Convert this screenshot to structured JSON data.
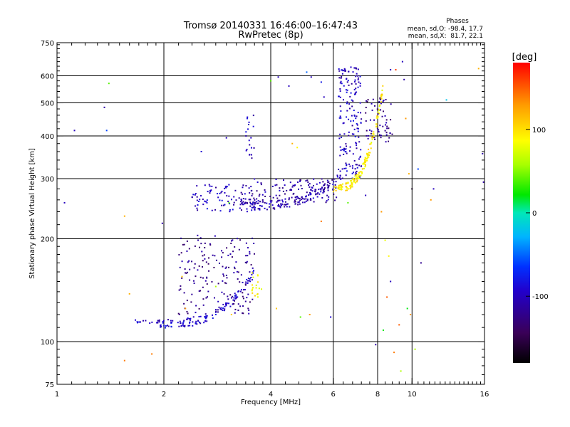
{
  "chart_data": {
    "type": "scatter",
    "title": "Tromsø 20140331 16:46:00–16:47:43",
    "subtitle": "RwPretec (8p)",
    "xlabel": "Frequency [MHz]",
    "ylabel": "Stationary phase Virtual Height [km]",
    "x_scale": "log",
    "y_scale": "log",
    "xlim": [
      1,
      16
    ],
    "ylim": [
      75,
      750
    ],
    "grid": true,
    "x_ticks": [
      1,
      2,
      4,
      6,
      8,
      10,
      16
    ],
    "y_ticks": [
      75,
      100,
      200,
      300,
      400,
      500,
      600,
      750
    ],
    "stats": {
      "heading": "Phases",
      "line_o": "mean, sd,O: -98.4, 17.7",
      "line_x": "mean, sd,X:  81.7, 22.1"
    },
    "colorbar": {
      "label": "[deg]",
      "range": [
        -180,
        180
      ],
      "ticks": [
        100,
        0,
        -100
      ]
    },
    "traces": [
      {
        "name": "",
        "phase": -100,
        "x_range": [
          1.6,
          2.0
        ],
        "h_range": [
          113,
          116
        ],
        "n": 18
      },
      {
        "name": "",
        "phase": -95,
        "x_range": [
          1.95,
          3.6
        ],
        "h_range": [
          113,
          160
        ],
        "n": 130,
        "shape": "curve"
      },
      {
        "name": "",
        "phase": -120,
        "x_range": [
          2.2,
          3.6
        ],
        "h_range": [
          120,
          205
        ],
        "n": 170,
        "shape": "cloud"
      },
      {
        "name": "",
        "phase": -100,
        "x_range": [
          2.4,
          3.6
        ],
        "h_range": [
          240,
          290
        ],
        "n": 90,
        "shape": "cloud"
      },
      {
        "name": "",
        "phase": -105,
        "x_range": [
          3.3,
          6.3
        ],
        "h_range": [
          250,
          305
        ],
        "n": 150,
        "shape": "curve"
      },
      {
        "name": "",
        "phase": -110,
        "x_range": [
          3.5,
          6.2
        ],
        "h_range": [
          255,
          300
        ],
        "n": 110,
        "shape": "cloud"
      },
      {
        "name": "",
        "phase": -100,
        "x_range": [
          6.2,
          7.2
        ],
        "h_range": [
          300,
          640
        ],
        "n": 170,
        "shape": "cloud"
      },
      {
        "name": "",
        "phase": 95,
        "x_range": [
          6.0,
          8.3
        ],
        "h_range": [
          280,
          560
        ],
        "n": 150,
        "shape": "curve"
      },
      {
        "name": "",
        "phase": -120,
        "x_range": [
          7.4,
          8.8
        ],
        "h_range": [
          380,
          520
        ],
        "n": 60,
        "shape": "cloud"
      },
      {
        "name": "",
        "phase": 90,
        "x_range": [
          3.5,
          3.8
        ],
        "h_range": [
          135,
          160
        ],
        "n": 18,
        "shape": "cloud"
      },
      {
        "name": "",
        "phase": -100,
        "x_range": [
          3.4,
          3.6
        ],
        "h_range": [
          320,
          460
        ],
        "n": 20,
        "shape": "cloud"
      }
    ],
    "scatter_points": [
      {
        "x": 1.05,
        "y": 255,
        "phase": -100
      },
      {
        "x": 1.12,
        "y": 415,
        "phase": -100
      },
      {
        "x": 1.36,
        "y": 485,
        "phase": -110
      },
      {
        "x": 1.38,
        "y": 415,
        "phase": -60
      },
      {
        "x": 1.4,
        "y": 570,
        "phase": 40
      },
      {
        "x": 1.55,
        "y": 233,
        "phase": 120
      },
      {
        "x": 1.55,
        "y": 88,
        "phase": 140
      },
      {
        "x": 1.6,
        "y": 138,
        "phase": 120
      },
      {
        "x": 1.85,
        "y": 92,
        "phase": 140
      },
      {
        "x": 1.98,
        "y": 222,
        "phase": -110
      },
      {
        "x": 2.25,
        "y": 155,
        "phase": 110
      },
      {
        "x": 2.3,
        "y": 125,
        "phase": 130
      },
      {
        "x": 2.55,
        "y": 360,
        "phase": -90
      },
      {
        "x": 2.65,
        "y": 245,
        "phase": -80
      },
      {
        "x": 2.8,
        "y": 145,
        "phase": 60
      },
      {
        "x": 3.0,
        "y": 395,
        "phase": -100
      },
      {
        "x": 3.05,
        "y": 255,
        "phase": 40
      },
      {
        "x": 3.1,
        "y": 120,
        "phase": 110
      },
      {
        "x": 4.0,
        "y": 580,
        "phase": 40
      },
      {
        "x": 4.15,
        "y": 125,
        "phase": 110
      },
      {
        "x": 4.2,
        "y": 595,
        "phase": -100
      },
      {
        "x": 4.5,
        "y": 560,
        "phase": -100
      },
      {
        "x": 4.6,
        "y": 380,
        "phase": 120
      },
      {
        "x": 4.75,
        "y": 370,
        "phase": 90
      },
      {
        "x": 4.85,
        "y": 118,
        "phase": 40
      },
      {
        "x": 5.05,
        "y": 615,
        "phase": -50
      },
      {
        "x": 5.15,
        "y": 120,
        "phase": 130
      },
      {
        "x": 5.2,
        "y": 595,
        "phase": -100
      },
      {
        "x": 5.55,
        "y": 225,
        "phase": 140
      },
      {
        "x": 5.55,
        "y": 575,
        "phase": -80
      },
      {
        "x": 5.65,
        "y": 520,
        "phase": -100
      },
      {
        "x": 5.9,
        "y": 118,
        "phase": -90
      },
      {
        "x": 6.6,
        "y": 255,
        "phase": 40
      },
      {
        "x": 7.4,
        "y": 268,
        "phase": -100
      },
      {
        "x": 7.9,
        "y": 98,
        "phase": -110
      },
      {
        "x": 8.2,
        "y": 240,
        "phase": 130
      },
      {
        "x": 8.4,
        "y": 198,
        "phase": 80
      },
      {
        "x": 8.3,
        "y": 108,
        "phase": 20
      },
      {
        "x": 8.5,
        "y": 135,
        "phase": 150
      },
      {
        "x": 8.6,
        "y": 178,
        "phase": 90
      },
      {
        "x": 8.7,
        "y": 625,
        "phase": -100
      },
      {
        "x": 8.7,
        "y": 150,
        "phase": -100
      },
      {
        "x": 8.9,
        "y": 93,
        "phase": 140
      },
      {
        "x": 9.0,
        "y": 625,
        "phase": 160
      },
      {
        "x": 9.2,
        "y": 112,
        "phase": 150
      },
      {
        "x": 9.3,
        "y": 82,
        "phase": 60
      },
      {
        "x": 9.4,
        "y": 660,
        "phase": -100
      },
      {
        "x": 9.5,
        "y": 585,
        "phase": -110
      },
      {
        "x": 9.6,
        "y": 450,
        "phase": 130
      },
      {
        "x": 9.7,
        "y": 125,
        "phase": 20
      },
      {
        "x": 9.8,
        "y": 310,
        "phase": 120
      },
      {
        "x": 9.9,
        "y": 120,
        "phase": 130
      },
      {
        "x": 10.0,
        "y": 280,
        "phase": -170
      },
      {
        "x": 10.2,
        "y": 95,
        "phase": 60
      },
      {
        "x": 10.4,
        "y": 320,
        "phase": -60
      },
      {
        "x": 10.6,
        "y": 170,
        "phase": -120
      },
      {
        "x": 11.3,
        "y": 260,
        "phase": 130
      },
      {
        "x": 11.5,
        "y": 280,
        "phase": -100
      },
      {
        "x": 12.5,
        "y": 510,
        "phase": -20
      },
      {
        "x": 15.4,
        "y": 630,
        "phase": 120
      },
      {
        "x": 15.8,
        "y": 355,
        "phase": -110
      },
      {
        "x": 15.9,
        "y": 293,
        "phase": -110
      }
    ]
  }
}
